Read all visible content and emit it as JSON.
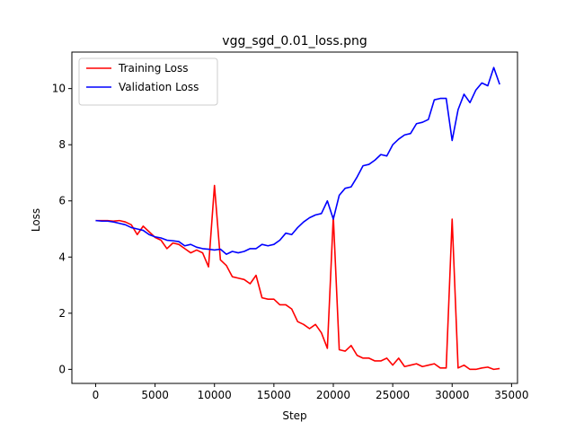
{
  "chart_data": {
    "type": "line",
    "title": "vgg_sgd_0.01_loss.png",
    "xlabel": "Step",
    "ylabel": "Loss",
    "xlim": [
      -2000,
      35500
    ],
    "ylim": [
      -0.5,
      11.3
    ],
    "xticks": [
      0,
      5000,
      10000,
      15000,
      20000,
      25000,
      30000,
      35000
    ],
    "yticks": [
      0,
      2,
      4,
      6,
      8,
      10
    ],
    "grid": false,
    "legend": "top-left",
    "series": [
      {
        "name": "Training Loss",
        "color": "#ff0000",
        "x": [
          0,
          500,
          1000,
          1500,
          2000,
          2500,
          3000,
          3500,
          4000,
          4500,
          5000,
          5500,
          6000,
          6500,
          7000,
          7500,
          8000,
          8500,
          9000,
          9500,
          10000,
          10500,
          11000,
          11500,
          12000,
          12500,
          13000,
          13500,
          14000,
          14500,
          15000,
          15500,
          16000,
          16500,
          17000,
          17500,
          18000,
          18500,
          19000,
          19500,
          20000,
          20500,
          21000,
          21500,
          22000,
          22500,
          23000,
          23500,
          24000,
          24500,
          25000,
          25500,
          26000,
          26500,
          27000,
          27500,
          28000,
          28500,
          29000,
          29500,
          30000,
          30500,
          31000,
          31500,
          32000,
          32500,
          33000,
          33500,
          34000
        ],
        "y": [
          5.3,
          5.3,
          5.3,
          5.28,
          5.3,
          5.25,
          5.15,
          4.8,
          5.1,
          4.9,
          4.7,
          4.6,
          4.3,
          4.5,
          4.45,
          4.3,
          4.15,
          4.25,
          4.15,
          3.65,
          6.55,
          3.9,
          3.7,
          3.3,
          3.25,
          3.2,
          3.05,
          3.35,
          2.55,
          2.5,
          2.5,
          2.3,
          2.3,
          2.15,
          1.7,
          1.6,
          1.45,
          1.6,
          1.3,
          0.75,
          5.45,
          0.7,
          0.65,
          0.85,
          0.5,
          0.4,
          0.4,
          0.3,
          0.3,
          0.4,
          0.15,
          0.4,
          0.1,
          0.15,
          0.2,
          0.1,
          0.15,
          0.2,
          0.05,
          0.05,
          5.35,
          0.05,
          0.15,
          0.0,
          0.0,
          0.05,
          0.08,
          0.0,
          0.03
        ]
      },
      {
        "name": "Validation Loss",
        "color": "#0000ff",
        "x": [
          0,
          500,
          1000,
          1500,
          2000,
          2500,
          3000,
          3500,
          4000,
          4500,
          5000,
          5500,
          6000,
          6500,
          7000,
          7500,
          8000,
          8500,
          9000,
          9500,
          10000,
          10500,
          11000,
          11500,
          12000,
          12500,
          13000,
          13500,
          14000,
          14500,
          15000,
          15500,
          16000,
          16500,
          17000,
          17500,
          18000,
          18500,
          19000,
          19500,
          20000,
          20500,
          21000,
          21500,
          22000,
          22500,
          23000,
          23500,
          24000,
          24500,
          25000,
          25500,
          26000,
          26500,
          27000,
          27500,
          28000,
          28500,
          29000,
          29500,
          30000,
          30500,
          31000,
          31500,
          32000,
          32500,
          33000,
          33500,
          34000
        ],
        "y": [
          5.3,
          5.28,
          5.28,
          5.25,
          5.2,
          5.15,
          5.05,
          5.0,
          4.95,
          4.8,
          4.72,
          4.68,
          4.6,
          4.58,
          4.55,
          4.4,
          4.45,
          4.35,
          4.3,
          4.28,
          4.25,
          4.28,
          4.1,
          4.2,
          4.15,
          4.2,
          4.3,
          4.3,
          4.45,
          4.4,
          4.45,
          4.6,
          4.85,
          4.8,
          5.05,
          5.25,
          5.4,
          5.5,
          5.55,
          6.0,
          5.35,
          6.2,
          6.45,
          6.5,
          6.85,
          7.25,
          7.3,
          7.45,
          7.65,
          7.6,
          8.0,
          8.2,
          8.35,
          8.4,
          8.75,
          8.8,
          8.9,
          9.6,
          9.65,
          9.65,
          8.15,
          9.25,
          9.8,
          9.5,
          9.95,
          10.2,
          10.1,
          10.75,
          10.15
        ]
      }
    ]
  }
}
